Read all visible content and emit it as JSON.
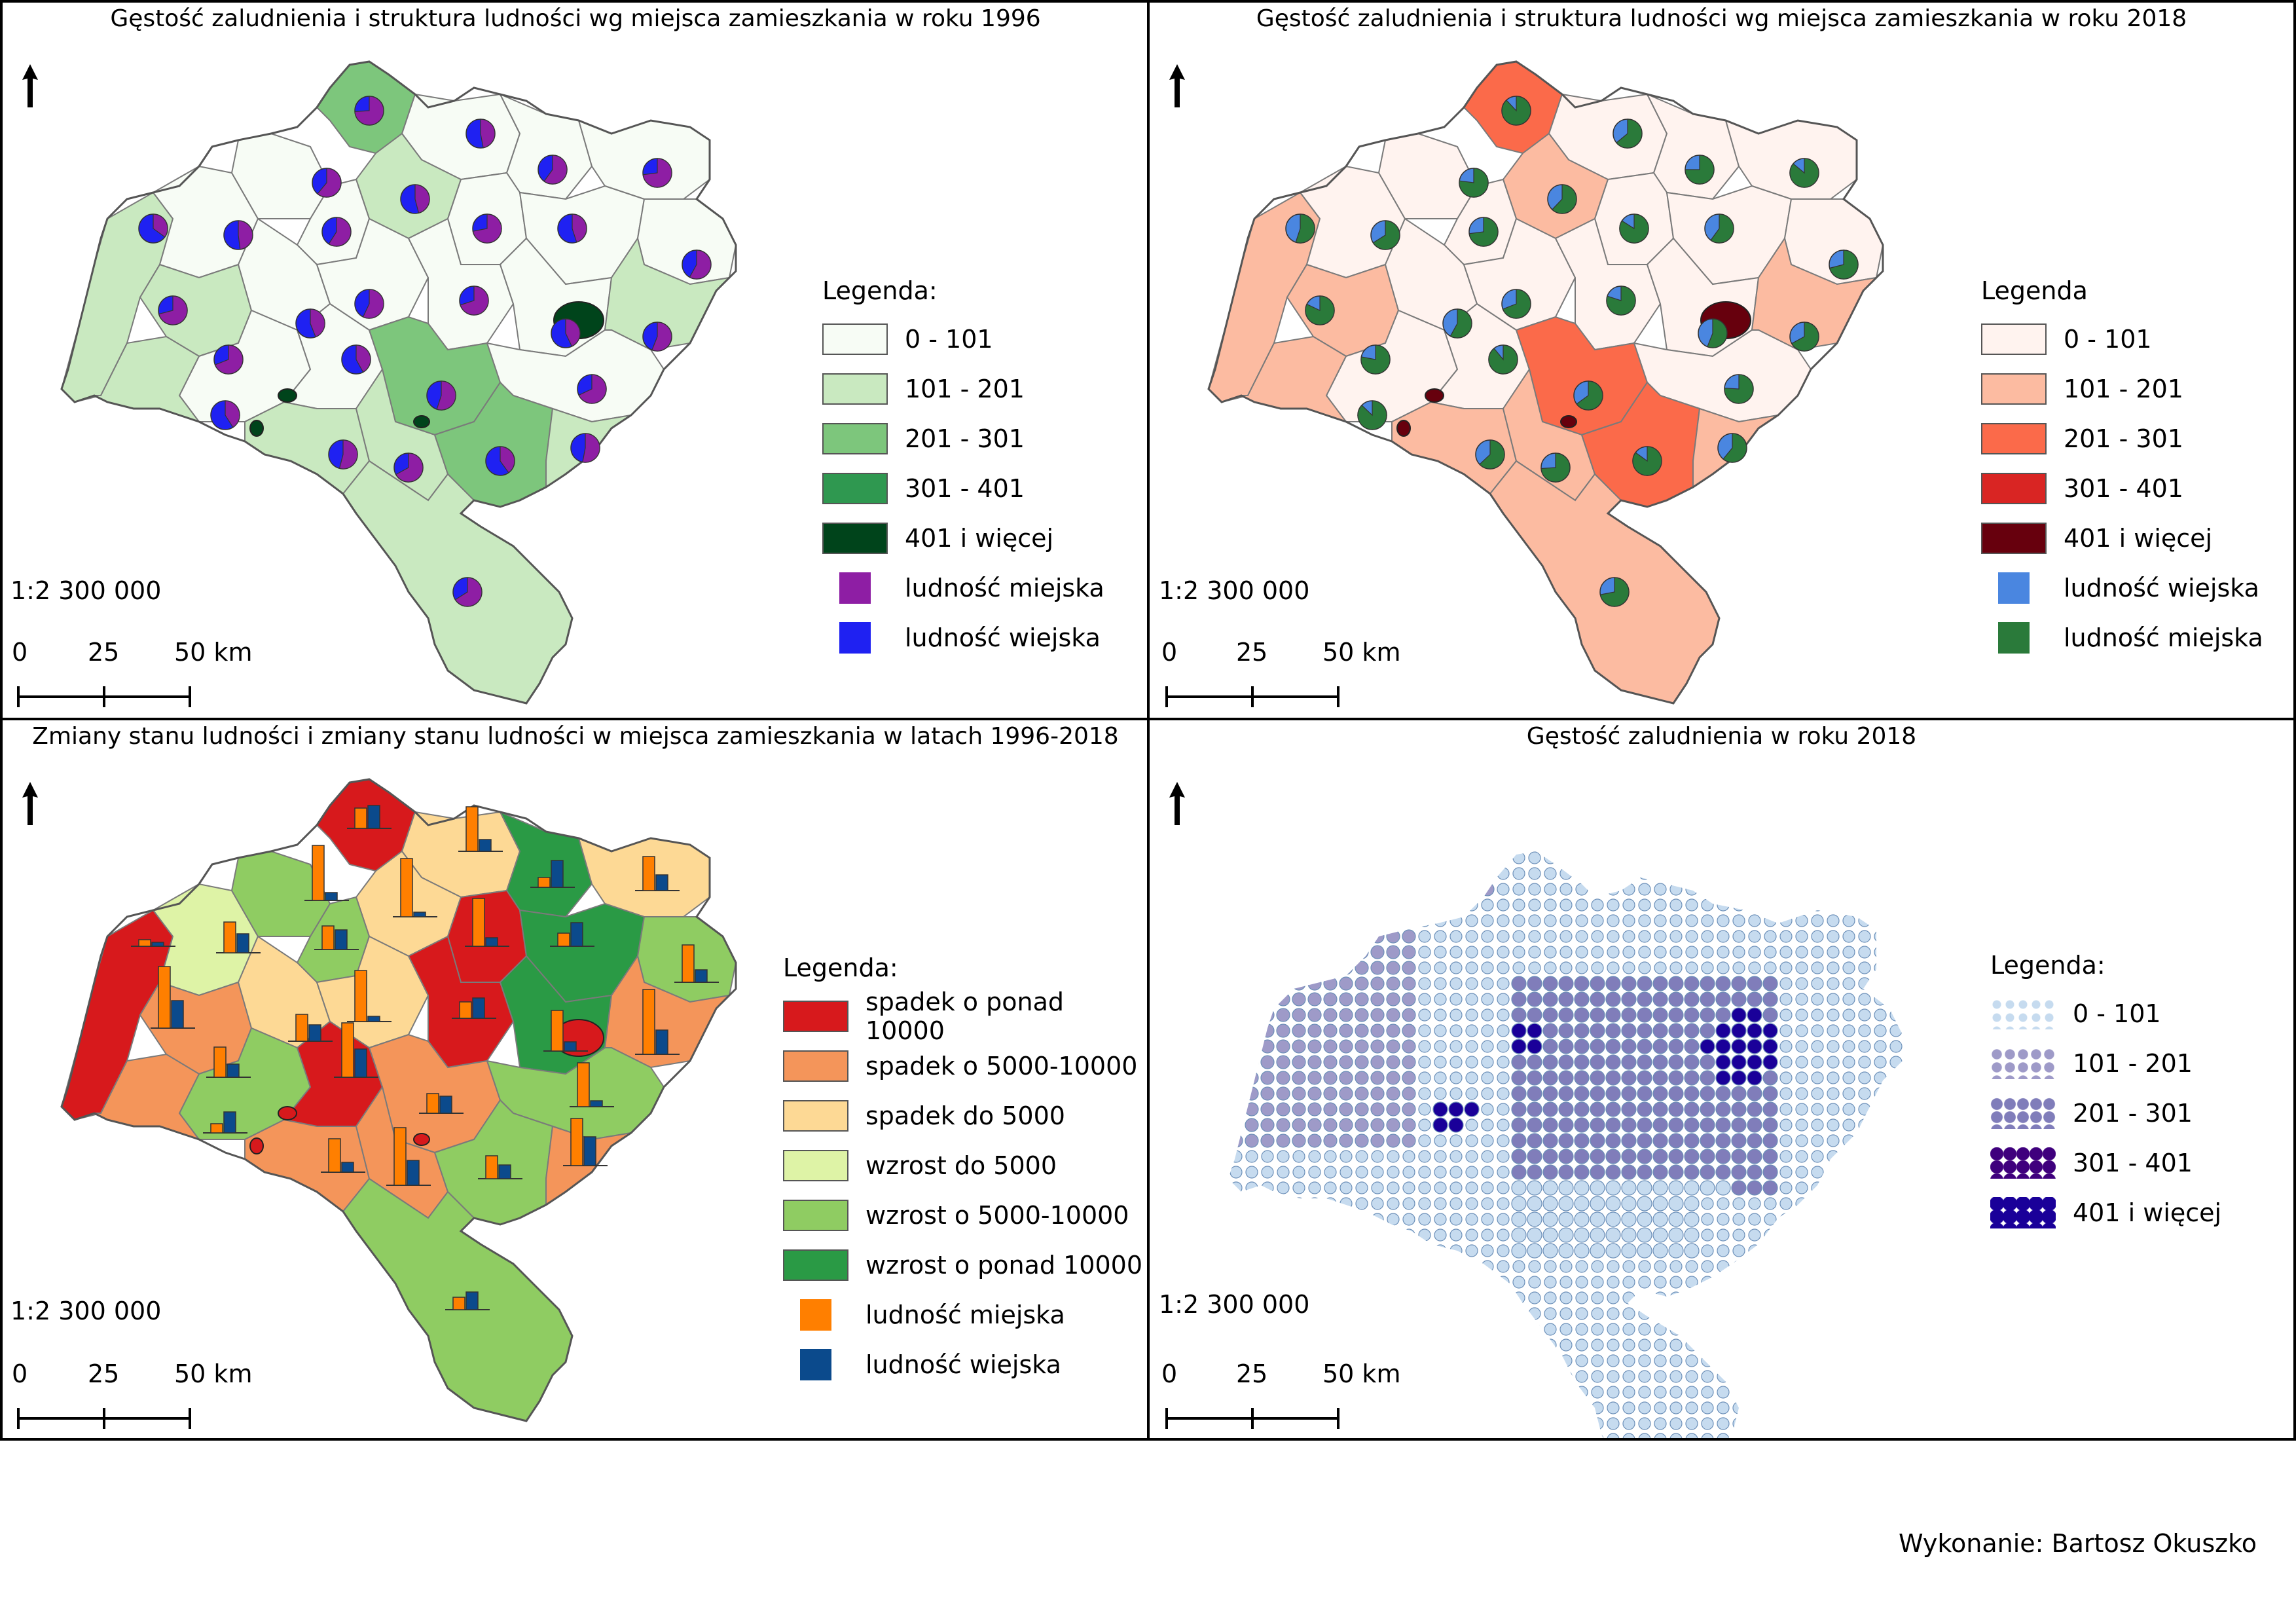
{
  "panels": [
    {
      "title": "Gęstość zaludnienia i struktura ludności wg miejsca zamieszkania w roku 1996",
      "scale": "1:2 300 000",
      "scale_ticks": [
        "0",
        "25",
        "50 km"
      ],
      "legend": {
        "title": "Legenda:",
        "classes": [
          {
            "label": "0 - 101",
            "color": "#f7fcf5"
          },
          {
            "label": "101 - 201",
            "color": "#c9e9c0"
          },
          {
            "label": "201 - 301",
            "color": "#7dc67c"
          },
          {
            "label": "301 - 401",
            "color": "#2f9850"
          },
          {
            "label": "401 i więcej",
            "color": "#00441b"
          }
        ],
        "symbols": [
          {
            "label": "ludność miejska",
            "color": "#8e1ea4"
          },
          {
            "label": "ludność wiejska",
            "color": "#1f21f2"
          }
        ]
      }
    },
    {
      "title": "Gęstość zaludnienia i struktura ludności wg miejsca zamieszkania w roku 2018",
      "scale": "1:2 300 000",
      "scale_ticks": [
        "0",
        "25",
        "50 km"
      ],
      "legend": {
        "title": "Legenda",
        "classes": [
          {
            "label": "0 - 101",
            "color": "#fff3ef"
          },
          {
            "label": "101 - 201",
            "color": "#fcbba1"
          },
          {
            "label": "201 - 301",
            "color": "#fb6a4a"
          },
          {
            "label": "301 - 401",
            "color": "#d92523"
          },
          {
            "label": "401 i więcej",
            "color": "#67000d"
          }
        ],
        "symbols": [
          {
            "label": "ludność wiejska",
            "color": "#4a86e0"
          },
          {
            "label": "ludność miejska",
            "color": "#2a7a3a"
          }
        ]
      }
    },
    {
      "title": "Zmiany stanu ludności  i zmiany stanu ludności w miejsca zamieszkania w latach 1996-2018",
      "scale": "1:2 300 000",
      "scale_ticks": [
        "0",
        "25",
        "50 km"
      ],
      "legend": {
        "title": "Legenda:",
        "classes": [
          {
            "label": "spadek o ponad 10000",
            "color": "#d7191c"
          },
          {
            "label": "spadek o 5000-10000",
            "color": "#f4955a"
          },
          {
            "label": "spadek do 5000",
            "color": "#fdd995"
          },
          {
            "label": "wzrost do 5000",
            "color": "#def3a6"
          },
          {
            "label": "wzrost o 5000-10000",
            "color": "#8fcc62"
          },
          {
            "label": "wzrost o ponad 10000",
            "color": "#2a9a45"
          }
        ],
        "symbols": [
          {
            "label": "ludność miejska",
            "color": "#ff7f00"
          },
          {
            "label": "ludność wiejska",
            "color": "#0b4a8c"
          }
        ]
      }
    },
    {
      "title": "Gęstość zaludnienia w roku 2018",
      "scale": "1:2 300 000",
      "scale_ticks": [
        "0",
        "25",
        "50 km"
      ],
      "legend": {
        "title": "Legenda:",
        "classes": [
          {
            "label": "0 - 101",
            "color": "#c6dbef"
          },
          {
            "label": "101 - 201",
            "color": "#9e9ac8"
          },
          {
            "label": "201 - 301",
            "color": "#807dba"
          },
          {
            "label": "301 - 401",
            "color": "#3f007d"
          },
          {
            "label": "401 i więcej",
            "color": "#1a0099"
          }
        ],
        "symbols": []
      }
    }
  ],
  "map_styles": [
    {
      "base": "#f7fcf5",
      "light": "#c9e9c0",
      "mid": "#7dc67c",
      "high": "#00441b",
      "border": "#7a7a7a",
      "pie_a": "#8e1ea4",
      "pie_b": "#1f21f2"
    },
    {
      "base": "#fff3ef",
      "light": "#fcbba1",
      "mid": "#fb6a4a",
      "high": "#67000d",
      "border": "#7a7a7a",
      "pie_a": "#2a7a3a",
      "pie_b": "#4a86e0"
    },
    {
      "base": "#fdd995",
      "light": "#def3a6",
      "mid": "#2a9a45",
      "high": "#d7191c",
      "border": "#7a7a7a",
      "bar_a": "#ff7f00",
      "bar_b": "#0b4a8c"
    },
    {
      "base": "#c6dbef",
      "light": "#9e9ac8",
      "mid": "#807dba",
      "high": "#1a0099",
      "border": "#8a8a8a"
    }
  ],
  "credit": "Wykonanie: Bartosz Okuszko"
}
